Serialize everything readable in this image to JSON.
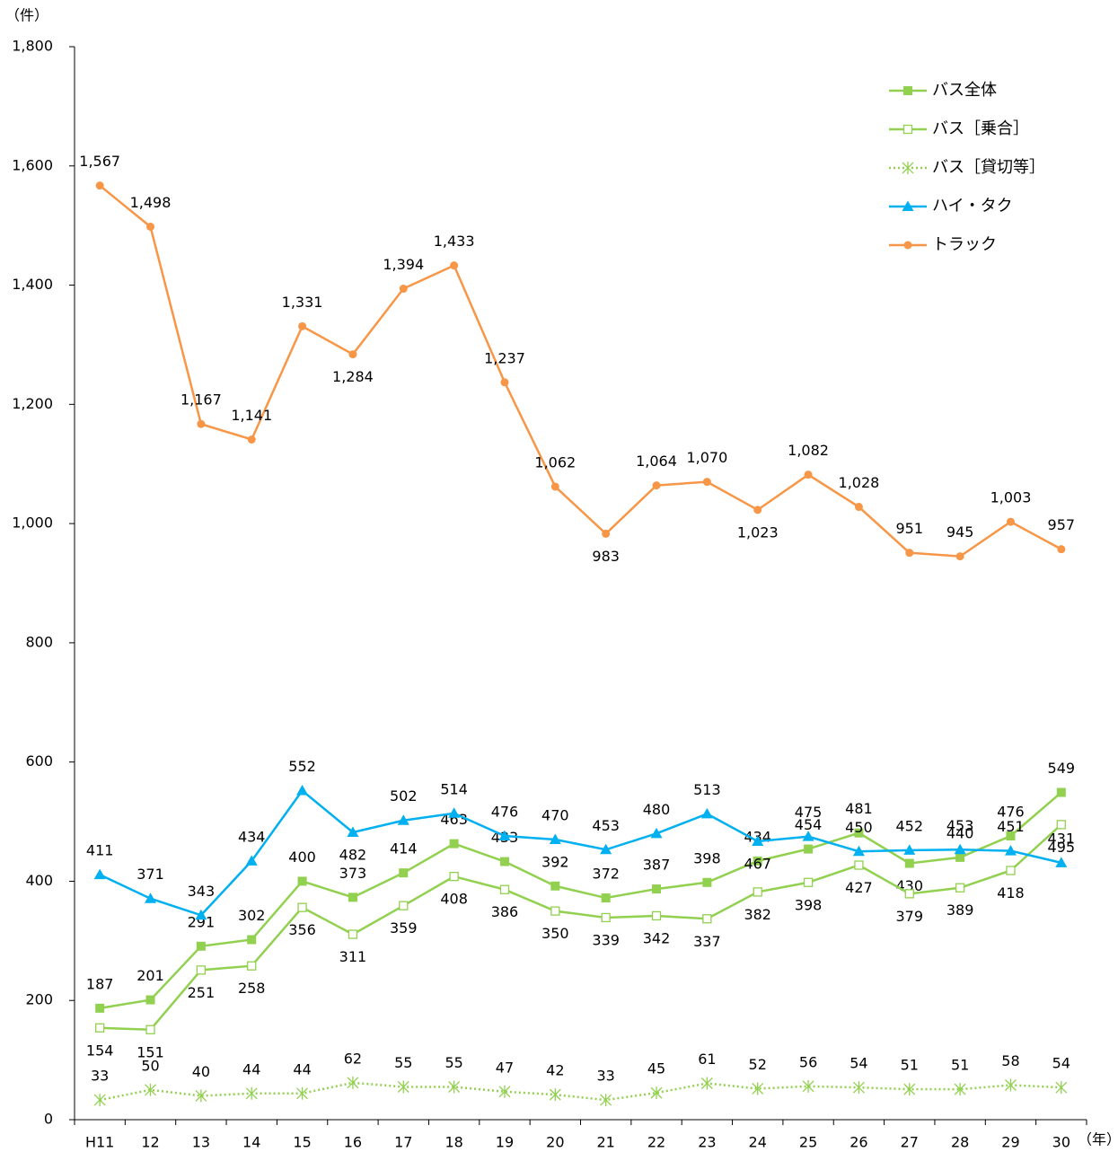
{
  "chart_data": {
    "type": "line",
    "y_unit": "（件）",
    "x_unit": "（年）",
    "categories": [
      "H11",
      "12",
      "13",
      "14",
      "15",
      "16",
      "17",
      "18",
      "19",
      "20",
      "21",
      "22",
      "23",
      "24",
      "25",
      "26",
      "27",
      "28",
      "29",
      "30"
    ],
    "ylim": [
      0,
      1800
    ],
    "yticks": [
      0,
      200,
      400,
      600,
      800,
      {
        "value": 1000,
        "label": "1,000"
      },
      {
        "value": 1200,
        "label": "1,200"
      },
      {
        "value": 1400,
        "label": "1,400"
      },
      {
        "value": 1600,
        "label": "1,600"
      },
      {
        "value": 1800,
        "label": "1,800"
      }
    ],
    "legend": "top-right",
    "series": [
      {
        "name": "バス全体",
        "color": "#92d050",
        "marker": "square",
        "label_side": "above",
        "values": [
          187,
          201,
          291,
          302,
          400,
          373,
          414,
          463,
          433,
          392,
          372,
          387,
          398,
          434,
          454,
          481,
          430,
          440,
          476,
          549
        ]
      },
      {
        "name": "バス［乗合］",
        "color": "#92d050",
        "marker": "square-open",
        "label_side": "below",
        "values": [
          154,
          151,
          251,
          258,
          356,
          311,
          359,
          408,
          386,
          350,
          339,
          342,
          337,
          382,
          398,
          427,
          379,
          389,
          418,
          495
        ]
      },
      {
        "name": "バス［貸切等］",
        "color": "#92d050",
        "marker": "asterisk",
        "dashed": true,
        "label_side": "above",
        "values": [
          33,
          50,
          40,
          44,
          44,
          62,
          55,
          55,
          47,
          42,
          33,
          45,
          61,
          52,
          56,
          54,
          51,
          51,
          58,
          54
        ]
      },
      {
        "name": "ハイ・タク",
        "color": "#00b0f0",
        "marker": "triangle",
        "label_side": "above",
        "values": [
          411,
          371,
          343,
          434,
          552,
          482,
          502,
          514,
          476,
          470,
          453,
          480,
          513,
          467,
          475,
          450,
          452,
          453,
          451,
          431
        ]
      },
      {
        "name": "トラック",
        "color": "#f79646",
        "marker": "circle",
        "label_side": "above",
        "values": [
          1567,
          1498,
          1167,
          1141,
          1331,
          1284,
          1394,
          1433,
          1237,
          1062,
          983,
          1064,
          1070,
          1023,
          1082,
          1028,
          951,
          945,
          1003,
          957
        ],
        "value_labels": [
          "1,567",
          "1,498",
          "1,167",
          "1,141",
          "1,331",
          "1,284",
          "1,394",
          "1,433",
          "1,237",
          "1,062",
          "983",
          "1,064",
          "1,070",
          "1,023",
          "1,082",
          "1,028",
          "951",
          "945",
          "1,003",
          "957"
        ]
      }
    ]
  }
}
